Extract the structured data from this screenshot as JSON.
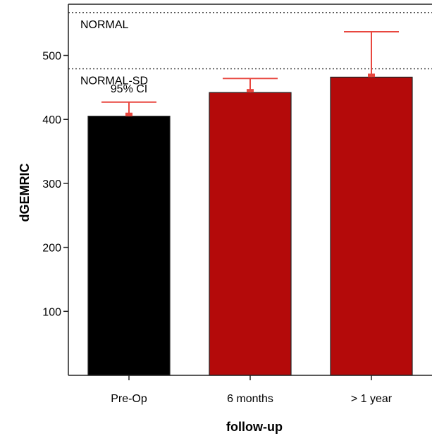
{
  "chart_data": {
    "type": "bar",
    "title": "",
    "xlabel": "follow-up",
    "ylabel": "dGEMRIC",
    "ylim": [
      0,
      580
    ],
    "yticks": [
      100,
      200,
      300,
      400,
      500
    ],
    "categories": [
      "Pre-Op",
      "6 months",
      "> 1 year"
    ],
    "values": [
      405,
      442,
      466
    ],
    "bar_colors": [
      "#000000",
      "#b40a0a",
      "#b40a0a"
    ],
    "error_upper": [
      427,
      464,
      537
    ],
    "error_color": "#e8473f",
    "reference_lines": [
      {
        "label": "NORMAL",
        "value": 567
      },
      {
        "label": "NORMAL-SD",
        "value": 479
      }
    ],
    "annotation": "95% CI",
    "grid": false
  }
}
